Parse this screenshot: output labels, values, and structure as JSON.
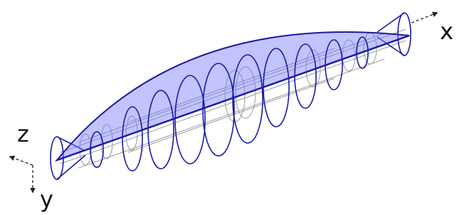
{
  "axes": {
    "x": "x",
    "z": "z",
    "y": "y"
  }
}
